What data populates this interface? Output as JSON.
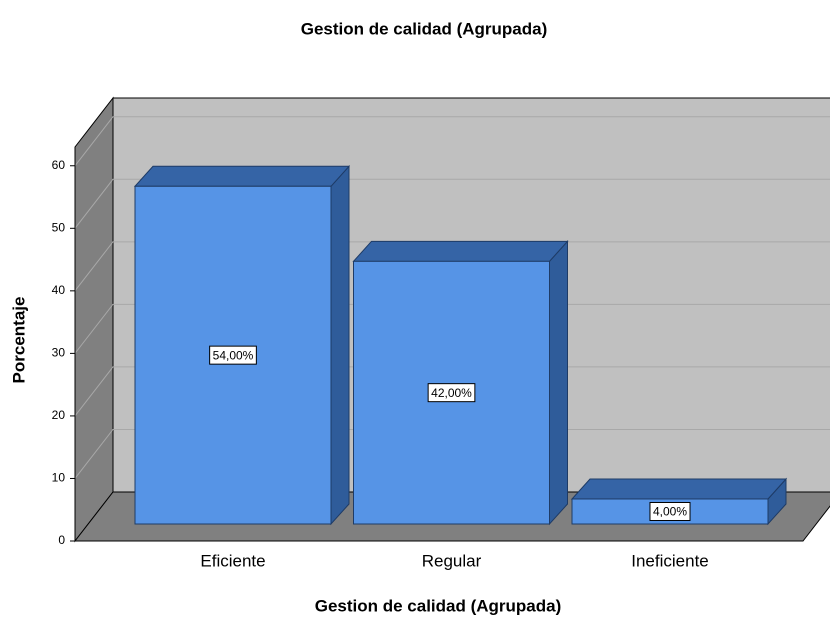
{
  "chart_data": {
    "type": "bar3d",
    "title": "Gestion de calidad (Agrupada)",
    "x_label": "Gestion de calidad (Agrupada)",
    "y_label": "Porcentaje",
    "categories": [
      "Eficiente",
      "Regular",
      "Ineficiente"
    ],
    "values": [
      54,
      42,
      4
    ],
    "value_labels": [
      "54,00%",
      "42,00%",
      "4,00%"
    ],
    "color": "#5694e6",
    "ylim": [
      0,
      63
    ],
    "yticks": [
      0,
      10,
      20,
      30,
      40,
      50,
      60
    ],
    "grid": true
  }
}
